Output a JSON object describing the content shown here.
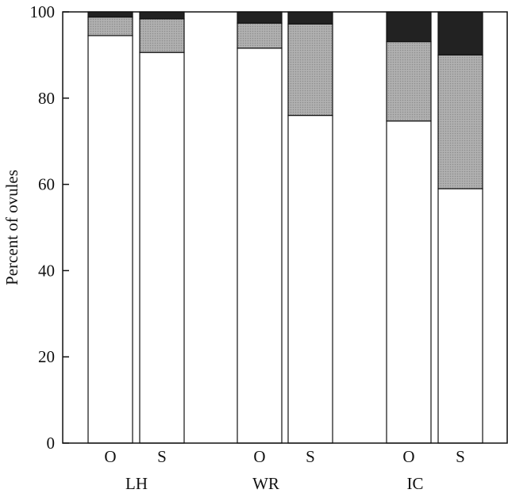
{
  "chart_data": {
    "type": "bar",
    "stacked": true,
    "ylabel": "Percent of ovules",
    "xlabel": "",
    "ylim": [
      0,
      100
    ],
    "yticks": [
      0,
      20,
      40,
      60,
      80,
      100
    ],
    "groups": [
      "LH",
      "WR",
      "IC"
    ],
    "categories": [
      "O",
      "S",
      "O",
      "S",
      "O",
      "S"
    ],
    "category_group": [
      "LH",
      "LH",
      "WR",
      "WR",
      "IC",
      "IC"
    ],
    "series": [
      {
        "values": [
          94.5,
          90.6,
          91.6,
          76.0,
          74.7,
          59.0
        ],
        "color": "#ffffff"
      },
      {
        "values": [
          4.3,
          7.8,
          5.8,
          21.2,
          18.4,
          31.0
        ],
        "color": "#a6a6a6"
      },
      {
        "values": [
          1.2,
          1.6,
          2.6,
          2.8,
          6.9,
          10.0
        ],
        "color": "#222222"
      }
    ],
    "grid": false,
    "legend": "none"
  }
}
